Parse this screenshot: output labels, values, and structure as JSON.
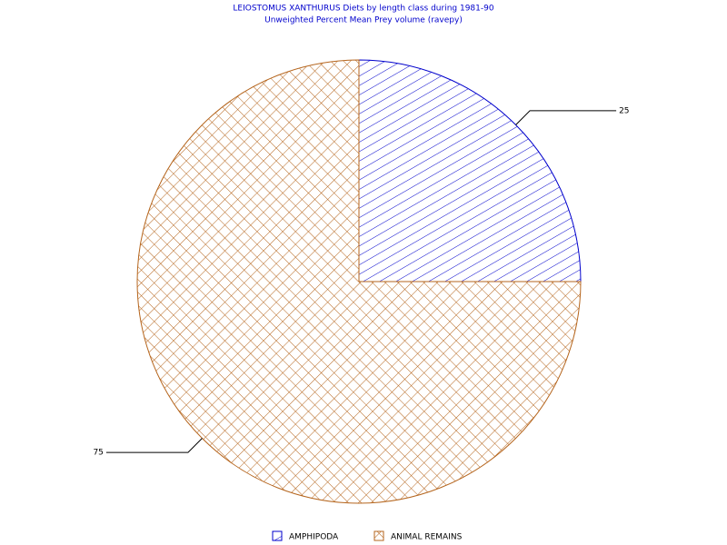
{
  "chart_data": {
    "type": "pie",
    "title": "LEIOSTOMUS XANTHURUS Diets by length class during 1981-90",
    "subtitle": "Unweighted Percent Mean Prey volume (ravepy)",
    "categories": [
      "AMPHIPODA",
      "ANIMAL REMAINS"
    ],
    "values": [
      25,
      75
    ],
    "colors": [
      "#0000cc",
      "#b5651d"
    ],
    "patterns": [
      "hatch",
      "crosshatch"
    ]
  }
}
